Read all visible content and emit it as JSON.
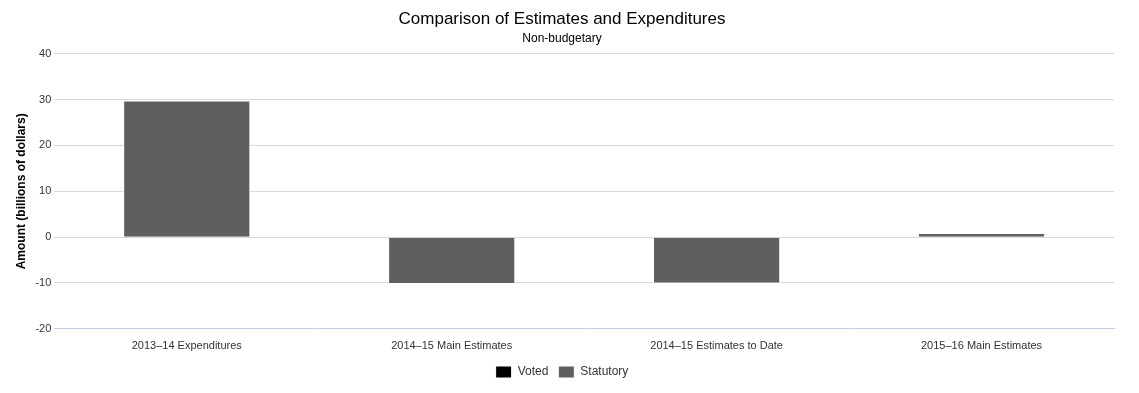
{
  "chart_data": {
    "type": "bar",
    "title": "Comparison of Estimates and Expenditures",
    "subtitle": "Non-budgetary",
    "ylabel": "Amount (billions of dollars)",
    "categories": [
      "2013–14 Expenditures",
      "2014–15 Main Estimates",
      "2014–15 Estimates to Date",
      "2015–16 Main Estimates"
    ],
    "series": [
      {
        "name": "Voted",
        "color": "#000000",
        "values": [
          0,
          0,
          0,
          0
        ]
      },
      {
        "name": "Statutory",
        "color": "#5f5f5f",
        "values": [
          29.8,
          -10.2,
          -10.1,
          0.9
        ]
      }
    ],
    "ylim": [
      -20,
      40
    ],
    "yticks": [
      -20,
      -10,
      0,
      10,
      20,
      30,
      40
    ],
    "grid": true,
    "legend": "bottom",
    "stacked": true
  }
}
